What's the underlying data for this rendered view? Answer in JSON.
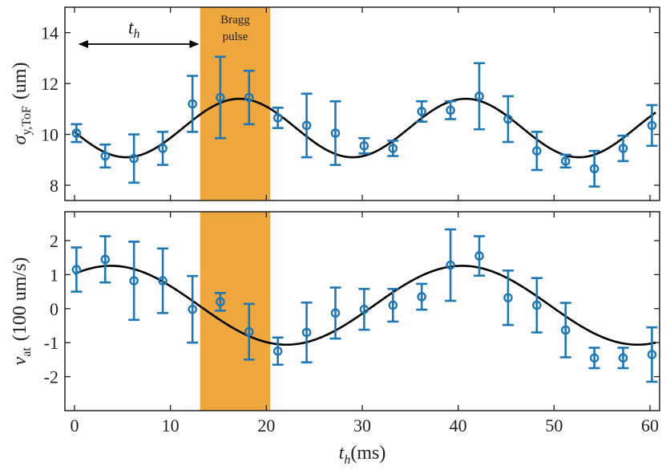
{
  "chart_data": [
    {
      "type": "scatter",
      "panel": "top",
      "ylabel_main": "σ",
      "ylabel_sub": "y,ToF",
      "ylabel_unit": "(um)",
      "ylim": [
        7.4,
        15
      ],
      "yticks": [
        8,
        10,
        12,
        14
      ],
      "xlim": [
        -1,
        61
      ],
      "series": [
        {
          "kind": "errorbar",
          "color": "#1f77b4",
          "x": [
            0.2,
            3.2,
            6.2,
            9.2,
            12.3,
            15.2,
            18.2,
            21.2,
            24.2,
            27.2,
            30.2,
            33.2,
            36.2,
            39.2,
            42.2,
            45.2,
            48.2,
            51.2,
            54.2,
            57.2,
            60.2
          ],
          "y": [
            10.05,
            9.15,
            9.05,
            9.45,
            11.2,
            11.45,
            11.45,
            10.65,
            10.35,
            10.05,
            9.55,
            9.45,
            10.9,
            10.95,
            11.5,
            10.6,
            9.35,
            8.95,
            8.65,
            9.45,
            10.35
          ],
          "yerr": [
            0.35,
            0.45,
            0.95,
            0.65,
            1.1,
            1.6,
            1.05,
            0.4,
            1.25,
            1.25,
            0.3,
            0.3,
            0.4,
            0.35,
            1.3,
            0.9,
            0.75,
            0.25,
            0.7,
            0.5,
            0.8
          ]
        },
        {
          "kind": "fit",
          "color": "#000000",
          "model": "sine",
          "offset": 10.25,
          "amplitude": 1.15,
          "period_ms": 23.6,
          "peak_x_ms": 17.2
        }
      ]
    },
    {
      "type": "scatter",
      "panel": "bottom",
      "ylabel_main": "v",
      "ylabel_sub": "at",
      "ylabel_unit": "(100 um/s)",
      "ylim": [
        -3,
        2.85
      ],
      "yticks": [
        -2,
        -1,
        0,
        1,
        2
      ],
      "xlim": [
        -1,
        61
      ],
      "xticks": [
        0,
        10,
        20,
        30,
        40,
        50,
        60
      ],
      "xlabel_main": "t",
      "xlabel_sub": "h",
      "xlabel_unit": "(ms)",
      "series": [
        {
          "kind": "errorbar",
          "color": "#1f77b4",
          "x": [
            0.2,
            3.2,
            6.2,
            9.2,
            12.3,
            15.2,
            18.2,
            21.2,
            24.2,
            27.2,
            30.2,
            33.2,
            36.2,
            39.2,
            42.2,
            45.2,
            48.2,
            51.2,
            54.2,
            57.2,
            60.2
          ],
          "y": [
            1.15,
            1.45,
            0.82,
            0.82,
            -0.02,
            0.2,
            -0.68,
            -1.25,
            -0.7,
            -0.13,
            -0.02,
            0.1,
            0.35,
            1.28,
            1.55,
            0.32,
            0.1,
            -0.63,
            -1.45,
            -1.45,
            -1.35
          ],
          "yerr": [
            0.65,
            0.68,
            1.15,
            0.95,
            0.98,
            0.26,
            0.82,
            0.4,
            0.88,
            0.75,
            0.6,
            0.48,
            0.38,
            1.05,
            0.58,
            0.8,
            0.8,
            0.8,
            0.3,
            0.3,
            0.8
          ]
        },
        {
          "kind": "fit",
          "color": "#000000",
          "model": "sine",
          "offset": 0.1,
          "amplitude": 1.16,
          "period_ms": 36.6,
          "peak_x_ms": 3.8
        }
      ]
    }
  ],
  "annotations": {
    "pulse_label_line1": "Bragg",
    "pulse_label_line2": "pulse",
    "pulse_x_range": [
      13.1,
      20.4
    ],
    "pulse_color": "#eda73e",
    "hold_label_main": "t",
    "hold_label_sub": "h",
    "hold_arrow_x_range": [
      0.5,
      12.9
    ],
    "hold_arrow_y": 13.55
  }
}
